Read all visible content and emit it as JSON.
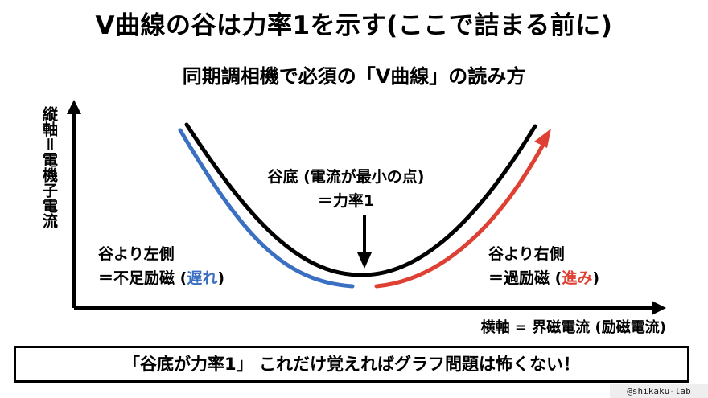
{
  "title": "V曲線の谷は力率1を示す(ここで詰まる前に)",
  "subtitle": "同期調相機で必須の「V曲線」の読み方",
  "axes": {
    "y_label": "縦軸＝電機子電流",
    "x_label": "横軸 = 界磁電流 (励磁電流)"
  },
  "annotations": {
    "bottom": {
      "line1": "谷底 (電流が最小の点)",
      "line2": "＝力率1"
    },
    "left": {
      "line1": "谷より左側",
      "line2_prefix": "＝不足励磁 (",
      "line2_em": "遅れ",
      "line2_suffix": ")"
    },
    "right": {
      "line1": "谷より右側",
      "line2_prefix": "＝過励磁 (",
      "line2_em": "進み",
      "line2_suffix": ")"
    }
  },
  "banner": "「谷底が力率1」 これだけ覚えればグラフ問題は怖くない！",
  "credit": "@shikaku-lab",
  "colors": {
    "main_curve": "#000000",
    "lagging": "#3a6fc2",
    "leading": "#de4033"
  }
}
